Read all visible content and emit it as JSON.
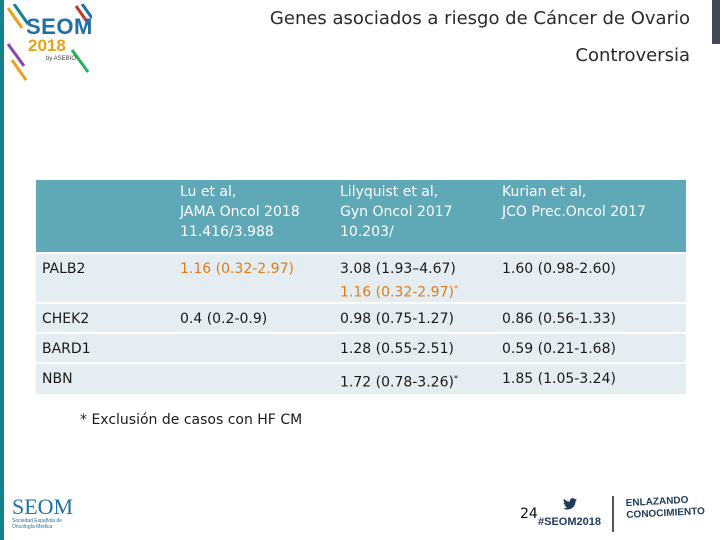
{
  "logo": {
    "name": "SEOM",
    "year": "2018",
    "small_text": "by ASEBIO"
  },
  "header": {
    "title": "Genes asociados a riesgo de Cáncer de Ovario",
    "subtitle": "Controversia"
  },
  "table": {
    "columns": [
      {
        "label": ""
      },
      {
        "line1": "Lu et al,",
        "line2": "JAMA Oncol 2018",
        "line3": "11.416/3.988"
      },
      {
        "line1": "Lilyquist et al,",
        "line2": "Gyn Oncol 2017",
        "line3": "10.203/"
      },
      {
        "line1": "Kurian et al,",
        "line2": "JCO Prec.Oncol 2017",
        "line3": ""
      }
    ],
    "rows": [
      {
        "gene": "PALB2",
        "c1": "1.16 (0.32-2.97)",
        "c2": "3.08 (1.93–4.67)",
        "c2b": "1.16 (0.32-2.97)",
        "c2b_mark": "*",
        "c3": "1.60 (0.98-2.60)"
      },
      {
        "gene": "CHEK2",
        "c1": "0.4 (0.2-0.9)",
        "c2": "0.98 (0.75-1.27)",
        "c3": "0.86 (0.56-1.33)"
      },
      {
        "gene": "BARD1",
        "c1": "",
        "c2": "1.28 (0.55-2.51)",
        "c3": "0.59 (0.21-1.68)"
      },
      {
        "gene": "NBN",
        "c1": "",
        "c2": "1.72 (0.78-3.26)",
        "c2_mark": "*",
        "c3": "1.85 (1.05-3.24)"
      }
    ]
  },
  "footnote": "* Exclusión de casos con HF CM",
  "footer": {
    "logo_title": "SEOM",
    "logo_subtitle": "Sociedad Española de Oncología Médica",
    "page_number": "24",
    "hashtag": "#SEOM2018",
    "tagline_line1": "ENLAZANDO",
    "tagline_line2": "CONOCIMIENTO",
    "twitter_icon": "twitter-bird-icon"
  },
  "colors": {
    "header_bg": "#5fa8b8",
    "row_bg": "#e4eef2",
    "accent_blue": "#1f6fa8",
    "accent_teal": "#14828c",
    "highlight_orange": "#e07b1a"
  }
}
